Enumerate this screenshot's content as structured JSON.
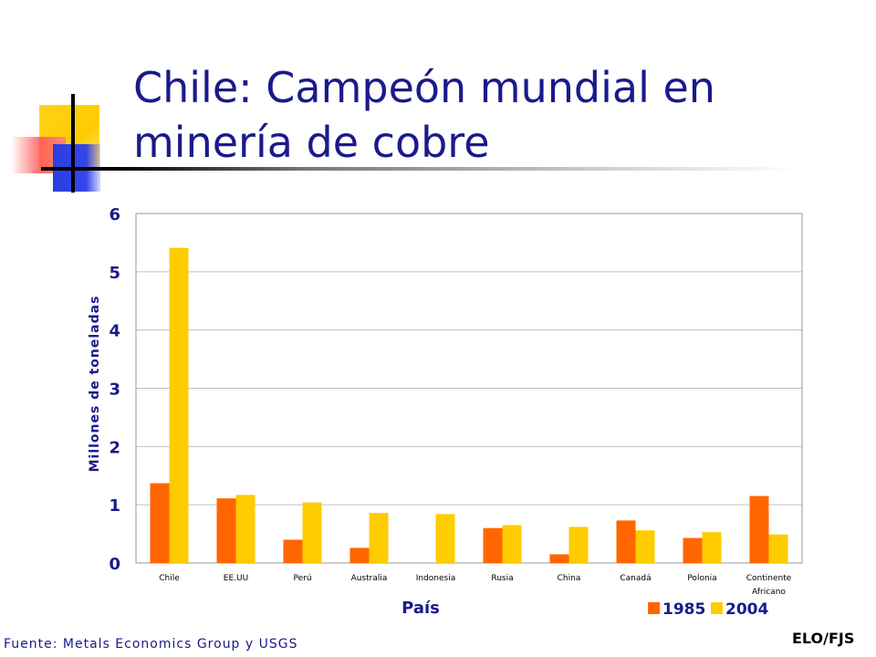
{
  "slide": {
    "title_line1": "Chile: Campeón mundial en",
    "title_line2": "minería de cobre",
    "source": "Fuente: Metals Economics Group y USGS",
    "credit": "ELO/FJS"
  },
  "colors": {
    "title": "#1A1A8C",
    "series_1985": "#FF6600",
    "series_2004": "#FFCC00",
    "grid": "#C0C0C0"
  },
  "chart_data": {
    "type": "bar",
    "title": "",
    "xlabel": "País",
    "ylabel": "Millones de toneladas",
    "ylim": [
      0,
      6
    ],
    "yticks": [
      0,
      1,
      2,
      3,
      4,
      5,
      6
    ],
    "grid": true,
    "legend_position": "bottom-right",
    "categories": [
      "Chile",
      "EE.UU",
      "Perú",
      "Australia",
      "Indonesia",
      "Rusia",
      "China",
      "Canadá",
      "Polonia",
      "Continente Africano"
    ],
    "series": [
      {
        "name": "1985",
        "values": [
          1.37,
          1.11,
          0.4,
          0.26,
          0.0,
          0.6,
          0.15,
          0.73,
          0.43,
          1.15
        ]
      },
      {
        "name": "2004",
        "values": [
          5.41,
          1.17,
          1.04,
          0.86,
          0.84,
          0.65,
          0.62,
          0.56,
          0.53,
          0.49
        ]
      }
    ]
  }
}
